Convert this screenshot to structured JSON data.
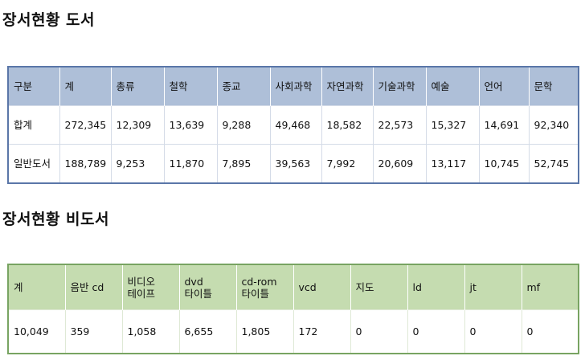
{
  "books_section": {
    "title": "장서현황 도서",
    "headers": [
      "구분",
      "계",
      "총류",
      "철학",
      "종교",
      "사회과학",
      "자연과학",
      "기술과학",
      "예술",
      "언어",
      "문학"
    ],
    "rows": [
      [
        "합계",
        "272,345",
        "12,309",
        "13,639",
        "9,288",
        "49,468",
        "18,582",
        "22,573",
        "15,327",
        "14,691",
        "92,340"
      ],
      [
        "일반도서",
        "188,789",
        "9,253",
        "11,870",
        "7,895",
        "39,563",
        "7,992",
        "20,609",
        "13,117",
        "10,745",
        "52,745"
      ]
    ]
  },
  "nonbooks_section": {
    "title": "장서현황 비도서",
    "headers": [
      [
        "계"
      ],
      [
        "음반 cd"
      ],
      [
        "비디오",
        "테이프"
      ],
      [
        "dvd",
        "타이틀"
      ],
      [
        "cd-rom",
        "타이틀"
      ],
      [
        "vcd"
      ],
      [
        "지도"
      ],
      [
        "ld"
      ],
      [
        "jt"
      ],
      [
        "mf"
      ]
    ],
    "rows": [
      [
        "10,049",
        "359",
        "1,058",
        "6,655",
        "1,805",
        "172",
        "0",
        "0",
        "0",
        "0"
      ]
    ]
  }
}
